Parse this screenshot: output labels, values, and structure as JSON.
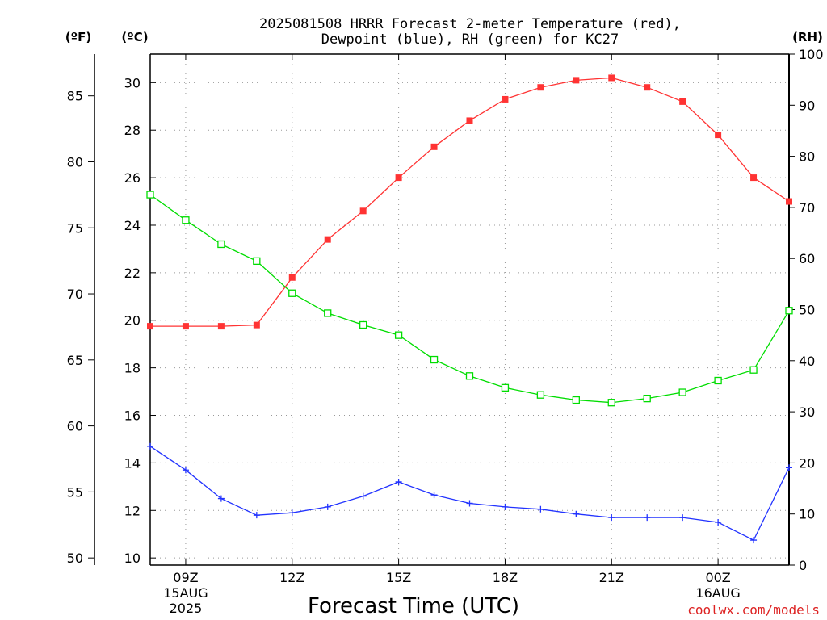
{
  "chart_data": {
    "type": "line",
    "title_line1": "2025081508 HRRR Forecast 2-meter Temperature (red),",
    "title_line2": "Dewpoint (blue), RH (green) for KC27",
    "left_f_label": "(ºF)",
    "left_c_label": "(ºC)",
    "right_label": "(RH)",
    "xlabel": "Forecast Time (UTC)",
    "credit": "coolwx.com/models",
    "x_hours": [
      8,
      9,
      10,
      11,
      12,
      13,
      14,
      15,
      16,
      17,
      18,
      19,
      20,
      21,
      22,
      23,
      24,
      25,
      26
    ],
    "x_ticks": [
      {
        "hour": 9,
        "line1": "09Z",
        "line2": "15AUG",
        "line3": "2025"
      },
      {
        "hour": 12,
        "line1": "12Z",
        "line2": "",
        "line3": ""
      },
      {
        "hour": 15,
        "line1": "15Z",
        "line2": "",
        "line3": ""
      },
      {
        "hour": 18,
        "line1": "18Z",
        "line2": "",
        "line3": ""
      },
      {
        "hour": 21,
        "line1": "21Z",
        "line2": "",
        "line3": ""
      },
      {
        "hour": 24,
        "line1": "00Z",
        "line2": "16AUG",
        "line3": ""
      }
    ],
    "xlim": [
      8,
      26
    ],
    "celsius_ylim": [
      9.7,
      31.2
    ],
    "celsius_ticks": [
      10,
      12,
      14,
      16,
      18,
      20,
      22,
      24,
      26,
      28,
      30
    ],
    "fahrenheit_ticks": [
      50,
      55,
      60,
      65,
      70,
      75,
      80,
      85
    ],
    "rh_ylim": [
      0,
      100
    ],
    "rh_ticks": [
      0,
      10,
      20,
      30,
      40,
      50,
      60,
      70,
      80,
      90,
      100
    ],
    "grid": true,
    "series": [
      {
        "axis": "celsius",
        "color": "#ff3333",
        "marker": "filled-square",
        "values": [
          19.75,
          19.75,
          19.75,
          19.8,
          21.8,
          23.4,
          24.6,
          26.0,
          27.3,
          28.4,
          29.3,
          29.8,
          30.1,
          30.2,
          29.8,
          29.2,
          27.8,
          26.0,
          25.0
        ]
      },
      {
        "axis": "celsius",
        "color": "#2233ff",
        "marker": "plus",
        "values": [
          14.7,
          13.7,
          12.5,
          11.8,
          11.9,
          12.15,
          12.6,
          13.2,
          12.65,
          12.3,
          12.15,
          12.05,
          11.85,
          11.7,
          11.7,
          11.7,
          11.5,
          10.75,
          13.8
        ]
      },
      {
        "axis": "rh",
        "color": "#00dd00",
        "marker": "open-square",
        "values": [
          72.5,
          67.5,
          62.8,
          59.5,
          53.2,
          49.3,
          47.0,
          45.0,
          40.2,
          37.0,
          34.7,
          33.3,
          32.3,
          31.8,
          32.6,
          33.8,
          36.1,
          38.2,
          49.8
        ]
      }
    ]
  }
}
